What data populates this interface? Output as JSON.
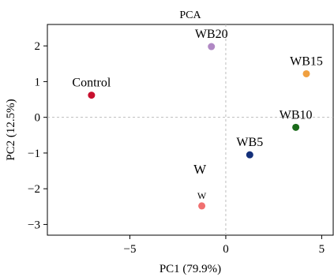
{
  "chart_data": {
    "type": "scatter",
    "title": "PCA",
    "xlabel": "PC1 (79.9%)",
    "ylabel": "PC2 (12.5%)",
    "xlim": [
      -9.3,
      5.6
    ],
    "ylim": [
      -3.3,
      2.6
    ],
    "xticks": [
      -5,
      0,
      5
    ],
    "yticks": [
      -3,
      -2,
      -1,
      0,
      1,
      2
    ],
    "reference_lines": {
      "x": 0,
      "y": 0,
      "style": "dashed"
    },
    "grid": false,
    "points": [
      {
        "label": "Control",
        "x": -7.0,
        "y": 0.62,
        "color": "#c8102e"
      },
      {
        "label": "WB20",
        "x": -0.75,
        "y": 1.98,
        "color": "#b088c4"
      },
      {
        "label": "WB15",
        "x": 4.2,
        "y": 1.22,
        "color": "#f0a040"
      },
      {
        "label": "WB10",
        "x": 3.65,
        "y": -0.28,
        "color": "#1a6b1a"
      },
      {
        "label": "WB5",
        "x": 1.25,
        "y": -1.05,
        "color": "#14307a"
      },
      {
        "label": "W",
        "x": -1.25,
        "y": -2.48,
        "color": "#f07070"
      }
    ],
    "annotations": [
      {
        "text": "W",
        "x": -1.35,
        "y": -1.58,
        "size": "large"
      }
    ]
  }
}
